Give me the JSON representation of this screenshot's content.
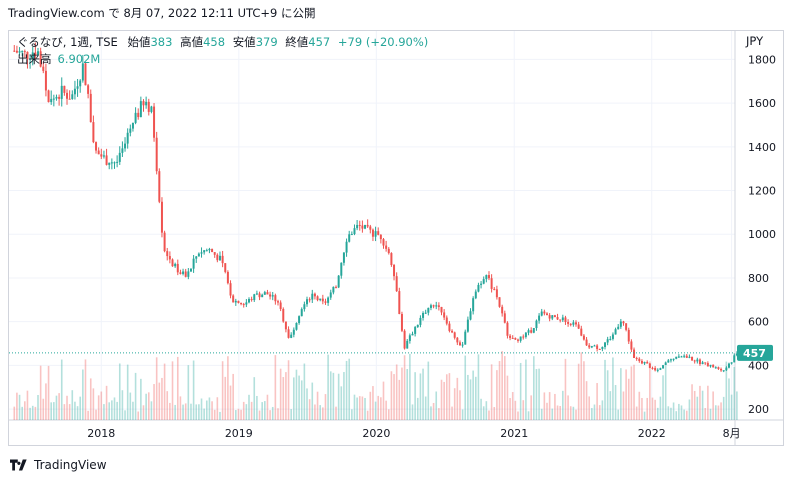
{
  "header": {
    "text": "TradingView.com で 8月 07, 2022 12:11 UTC+9 に公開"
  },
  "legend": {
    "symbol": "ぐるなび, 1週, TSE",
    "open_label": "始値",
    "open": "383",
    "high_label": "高値",
    "high": "458",
    "low_label": "安値",
    "low": "379",
    "close_label": "終値",
    "close": "457",
    "change": "+79 (+20.90%)",
    "volume_label": "出来高",
    "volume": "6.902M"
  },
  "currency": "JPY",
  "last_price_label": "457",
  "footer": {
    "brand": "TradingView"
  },
  "colors": {
    "up": "#26a69a",
    "down": "#ef5350",
    "grid": "#f0f3fa",
    "last_price": "#26a69a"
  },
  "chart_data": {
    "type": "line",
    "x_ticks": [
      "2018",
      "2019",
      "2020",
      "2021",
      "2022",
      "8月"
    ],
    "y_ticks": [
      200,
      400,
      600,
      800,
      1000,
      1200,
      1400,
      1600,
      1800
    ],
    "ylim": [
      150,
      1930
    ],
    "series": [
      {
        "values_by_date": [
          [
            "2017-05",
            1840
          ],
          [
            "2017-06",
            1820
          ],
          [
            "2017-07",
            1850
          ],
          [
            "2017-08",
            1600
          ],
          [
            "2017-09",
            1650
          ],
          [
            "2017-10",
            1630
          ],
          [
            "2017-11",
            1780
          ],
          [
            "2017-12",
            1380
          ],
          [
            "2018-01",
            1340
          ],
          [
            "2018-02",
            1330
          ],
          [
            "2018-03",
            1450
          ],
          [
            "2018-04",
            1580
          ],
          [
            "2018-05",
            1580
          ],
          [
            "2018-06",
            940
          ],
          [
            "2018-07",
            850
          ],
          [
            "2018-08",
            800
          ],
          [
            "2018-09",
            920
          ],
          [
            "2018-10",
            930
          ],
          [
            "2018-11",
            880
          ],
          [
            "2018-12",
            700
          ],
          [
            "2019-01",
            680
          ],
          [
            "2019-02",
            720
          ],
          [
            "2019-03",
            730
          ],
          [
            "2019-04",
            690
          ],
          [
            "2019-05",
            520
          ],
          [
            "2019-06",
            660
          ],
          [
            "2019-07",
            720
          ],
          [
            "2019-08",
            680
          ],
          [
            "2019-09",
            760
          ],
          [
            "2019-10",
            990
          ],
          [
            "2019-11",
            1040
          ],
          [
            "2019-12",
            1010
          ],
          [
            "2020-01",
            990
          ],
          [
            "2020-02",
            850
          ],
          [
            "2020-03",
            480
          ],
          [
            "2020-04",
            580
          ],
          [
            "2020-05",
            660
          ],
          [
            "2020-06",
            680
          ],
          [
            "2020-07",
            560
          ],
          [
            "2020-08",
            480
          ],
          [
            "2020-09",
            720
          ],
          [
            "2020-10",
            820
          ],
          [
            "2020-11",
            720
          ],
          [
            "2020-12",
            540
          ],
          [
            "2021-01",
            520
          ],
          [
            "2021-02",
            560
          ],
          [
            "2021-03",
            640
          ],
          [
            "2021-04",
            620
          ],
          [
            "2021-05",
            610
          ],
          [
            "2021-06",
            580
          ],
          [
            "2021-07",
            490
          ],
          [
            "2021-08",
            480
          ],
          [
            "2021-09",
            530
          ],
          [
            "2021-10",
            620
          ],
          [
            "2021-11",
            430
          ],
          [
            "2021-12",
            410
          ],
          [
            "2022-01",
            370
          ],
          [
            "2022-02",
            420
          ],
          [
            "2022-03",
            450
          ],
          [
            "2022-04",
            430
          ],
          [
            "2022-05",
            410
          ],
          [
            "2022-06",
            390
          ],
          [
            "2022-07",
            380
          ],
          [
            "2022-08",
            457
          ]
        ]
      }
    ]
  }
}
